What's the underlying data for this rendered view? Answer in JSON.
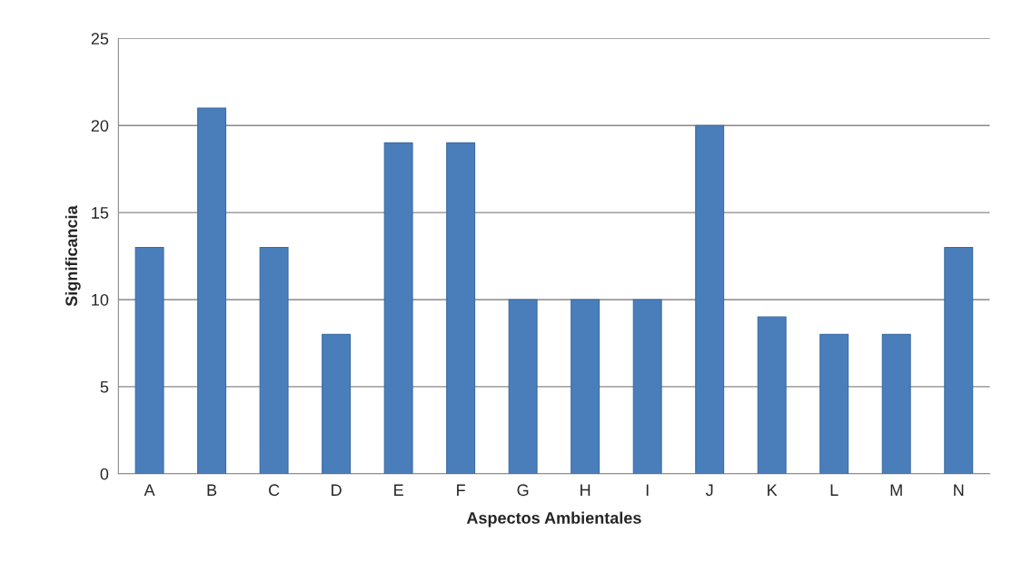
{
  "chart_data": {
    "type": "bar",
    "xlabel": "Aspectos Ambientales",
    "ylabel": "Significancia",
    "categories": [
      "A",
      "B",
      "C",
      "D",
      "E",
      "F",
      "G",
      "H",
      "I",
      "J",
      "K",
      "L",
      "M",
      "N"
    ],
    "values": [
      13,
      21,
      13,
      8,
      19,
      19,
      10,
      10,
      10,
      20,
      9,
      8,
      8,
      13
    ],
    "color": "#4a7ebb",
    "ylim": [
      0,
      25
    ],
    "yticks": [
      0,
      5,
      10,
      15,
      20,
      25
    ],
    "grid": "y",
    "legend": false
  }
}
